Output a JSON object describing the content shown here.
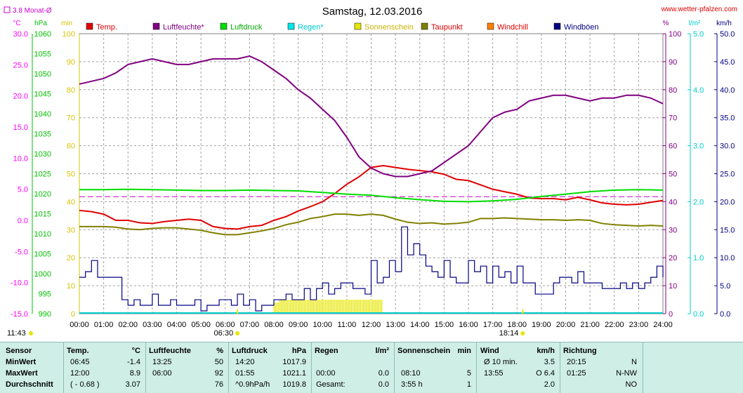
{
  "title": "Samstag, 12.03.2016",
  "source": "www.wetter-pfalzen.com",
  "month_avg_label": "3.8 Monat-Ø",
  "colors": {
    "temp": "#e00000",
    "humidity": "#800080",
    "pressure": "#00dd00",
    "rain": "#00cccc",
    "sunshine": "#e6e600",
    "dewpoint": "#808000",
    "windchill": "#ff8000",
    "gusts": "#000080",
    "temp_axis": "#ff00ff",
    "pressure_axis": "#00c000",
    "sun_axis": "#d4c400",
    "humidity_axis": "#800080",
    "rain_axis": "#00cccc",
    "wind_axis": "#000080",
    "month_avg": "#cc00cc",
    "table_bg": "#cfeee6"
  },
  "legend": [
    {
      "label": "Temp.",
      "color": "#e00000",
      "text_color": "#e00000"
    },
    {
      "label": "Luftfeuchte*",
      "color": "#800080",
      "text_color": "#800080"
    },
    {
      "label": "Luftdruck",
      "color": "#00dd00",
      "text_color": "#00aa00"
    },
    {
      "label": "Regen*",
      "color": "#00e6e6",
      "text_color": "#00cccc"
    },
    {
      "label": "Sonnenschein",
      "color": "#e6e600",
      "text_color": "#c8b400"
    },
    {
      "label": "Taupunkt",
      "color": "#808000",
      "text_color": "#e00000"
    },
    {
      "label": "Windchill",
      "color": "#ff8000",
      "text_color": "#e00000"
    },
    {
      "label": "Windböen",
      "color": "#000080",
      "text_color": "#000080"
    }
  ],
  "axes": {
    "temp": {
      "unit": "°C",
      "ticks": [
        "30.0",
        "25.0",
        "20.0",
        "15.0",
        "10.0",
        "5.0",
        "0.0",
        "-5.0",
        "-10.0",
        "-15.0"
      ],
      "range": [
        -15,
        30
      ]
    },
    "pressure": {
      "unit": "hPa",
      "ticks": [
        "1060",
        "1055",
        "1050",
        "1045",
        "1040",
        "1035",
        "1030",
        "1025",
        "1020",
        "1015",
        "1010",
        "1005",
        "1000",
        "995",
        "990"
      ],
      "range": [
        990,
        1060
      ]
    },
    "sun": {
      "unit": "min",
      "ticks": [
        "100",
        "90",
        "80",
        "70",
        "60",
        "50",
        "40",
        "30",
        "20",
        "10",
        "0"
      ],
      "range": [
        0,
        100
      ]
    },
    "humidity": {
      "unit": "%",
      "ticks": [
        "100",
        "90",
        "80",
        "70",
        "60",
        "50",
        "40",
        "30",
        "20",
        "10",
        "0"
      ],
      "range": [
        0,
        100
      ]
    },
    "rain": {
      "unit": "l/m²",
      "ticks": [
        "5.0",
        "4.0",
        "3.0",
        "2.0",
        "1.0",
        "0.0"
      ],
      "range": [
        0,
        5
      ]
    },
    "wind": {
      "unit": "km/h",
      "ticks": [
        "50.0",
        "45.0",
        "40.0",
        "35.0",
        "30.0",
        "25.0",
        "20.0",
        "15.0",
        "10.0",
        "5.0",
        "0.0"
      ],
      "range": [
        0,
        50
      ]
    }
  },
  "x_ticks": [
    "00:00",
    "01:00",
    "02:00",
    "03:00",
    "04:00",
    "05:00",
    "06:00",
    "07:00",
    "08:00",
    "09:00",
    "10:00",
    "11:00",
    "12:00",
    "13:00",
    "14:00",
    "15:00",
    "16:00",
    "17:00",
    "18:00",
    "19:00",
    "20:00",
    "21:00",
    "22:00",
    "23:00",
    "24:00"
  ],
  "sun_events": {
    "sunrise": "06:30",
    "sunset": "18:14",
    "daylength": "11:43"
  },
  "chart_data": {
    "type": "line",
    "title": "Samstag, 12.03.2016",
    "x_unit": "hour",
    "xlim": [
      0,
      24
    ],
    "month_avg_temp": 3.8,
    "series": [
      {
        "name": "Temp.",
        "axis": "temp",
        "x": [
          0,
          0.5,
          1,
          1.5,
          2,
          2.5,
          3,
          3.5,
          4,
          4.5,
          5,
          5.5,
          6,
          6.5,
          7,
          7.5,
          8,
          8.5,
          9,
          9.5,
          10,
          10.5,
          11,
          11.5,
          12,
          12.5,
          13,
          13.5,
          14,
          14.5,
          15,
          15.5,
          16,
          16.5,
          17,
          17.5,
          18,
          18.5,
          19,
          19.5,
          20,
          20.5,
          21,
          21.5,
          22,
          22.5,
          23,
          23.5,
          24
        ],
        "y": [
          1.6,
          1.4,
          1.0,
          0.0,
          0.0,
          -0.4,
          -0.5,
          -0.2,
          0.0,
          0.2,
          0.0,
          -1.0,
          -1.3,
          -1.4,
          -1.0,
          -0.8,
          0.0,
          0.6,
          1.5,
          2.2,
          3.0,
          4.3,
          5.8,
          7.0,
          8.5,
          8.8,
          8.5,
          8.2,
          8.0,
          7.8,
          7.4,
          6.6,
          6.4,
          5.7,
          5.0,
          4.6,
          4.2,
          3.6,
          3.5,
          3.5,
          3.3,
          3.7,
          3.3,
          2.8,
          2.6,
          2.5,
          2.6,
          2.9,
          3.2
        ]
      },
      {
        "name": "Luftfeuchte*",
        "axis": "humidity",
        "x": [
          0,
          0.5,
          1,
          1.5,
          2,
          2.5,
          3,
          3.5,
          4,
          4.5,
          5,
          5.5,
          6,
          6.5,
          7,
          7.5,
          8,
          8.5,
          9,
          9.5,
          10,
          10.5,
          11,
          11.5,
          12,
          12.5,
          13,
          13.5,
          14,
          14.5,
          15,
          15.5,
          16,
          16.5,
          17,
          17.5,
          18,
          18.5,
          19,
          19.5,
          20,
          20.5,
          21,
          21.5,
          22,
          22.5,
          23,
          23.5,
          24
        ],
        "y": [
          82,
          83,
          84,
          86,
          89,
          90,
          91,
          90,
          89,
          89,
          90,
          91,
          91,
          91,
          92,
          90,
          87,
          84,
          80,
          77,
          73,
          69,
          63,
          56,
          52,
          50,
          49,
          49,
          50,
          51,
          54,
          57,
          60,
          65,
          70,
          72,
          73,
          76,
          77,
          78,
          78,
          77,
          76,
          77,
          77,
          78,
          78,
          77,
          75
        ]
      },
      {
        "name": "Luftdruck",
        "axis": "pressure",
        "x": [
          0,
          1,
          2,
          3,
          4,
          5,
          6,
          7,
          8,
          9,
          10,
          11,
          12,
          13,
          14,
          15,
          16,
          17,
          18,
          19,
          20,
          21,
          22,
          23,
          24
        ],
        "y": [
          1021.0,
          1021.0,
          1021.1,
          1021.0,
          1020.9,
          1020.8,
          1020.8,
          1020.9,
          1020.8,
          1020.7,
          1020.3,
          1019.9,
          1019.6,
          1019.0,
          1018.5,
          1018.1,
          1018.0,
          1018.2,
          1018.6,
          1019.3,
          1019.9,
          1020.5,
          1020.9,
          1021.0,
          1020.9
        ]
      },
      {
        "name": "Taupunkt",
        "axis": "temp",
        "x": [
          0,
          0.5,
          1,
          1.5,
          2,
          2.5,
          3,
          3.5,
          4,
          4.5,
          5,
          5.5,
          6,
          6.5,
          7,
          7.5,
          8,
          8.5,
          9,
          9.5,
          10,
          10.5,
          11,
          11.5,
          12,
          12.5,
          13,
          13.5,
          14,
          14.5,
          15,
          15.5,
          16,
          16.5,
          17,
          17.5,
          18,
          18.5,
          19,
          19.5,
          20,
          20.5,
          21,
          21.5,
          22,
          22.5,
          23,
          23.5,
          24
        ],
        "y": [
          -1.0,
          -1.0,
          -1.0,
          -1.1,
          -1.4,
          -1.5,
          -1.3,
          -1.2,
          -1.2,
          -1.4,
          -1.6,
          -2.0,
          -2.3,
          -2.3,
          -2.0,
          -1.7,
          -1.3,
          -0.7,
          -0.3,
          0.3,
          0.6,
          1.0,
          1.0,
          0.8,
          1.0,
          0.8,
          0.2,
          -0.3,
          -0.5,
          -0.4,
          -0.6,
          -0.5,
          -0.3,
          0.3,
          0.3,
          0.4,
          0.3,
          0.2,
          0.1,
          0.1,
          0.0,
          0.1,
          0.0,
          -0.5,
          -0.7,
          -0.8,
          -0.9,
          -0.8,
          -0.9
        ]
      },
      {
        "name": "Windböen",
        "axis": "wind",
        "x": [
          0,
          0.25,
          0.5,
          0.75,
          1,
          1.25,
          1.5,
          1.75,
          2,
          2.25,
          2.5,
          2.75,
          3,
          3.25,
          3.5,
          3.75,
          4,
          4.25,
          4.5,
          4.75,
          5,
          5.25,
          5.5,
          5.75,
          6,
          6.25,
          6.5,
          6.75,
          7,
          7.25,
          7.5,
          7.75,
          8,
          8.25,
          8.5,
          8.75,
          9,
          9.25,
          9.5,
          9.75,
          10,
          10.25,
          10.5,
          10.75,
          11,
          11.25,
          11.5,
          11.75,
          12,
          12.25,
          12.5,
          12.75,
          13,
          13.25,
          13.5,
          13.75,
          14,
          14.25,
          14.5,
          14.75,
          15,
          15.25,
          15.5,
          15.75,
          16,
          16.25,
          16.5,
          16.75,
          17,
          17.25,
          17.5,
          17.75,
          18,
          18.25,
          18.5,
          18.75,
          19,
          19.25,
          19.5,
          19.75,
          20,
          20.25,
          20.5,
          20.75,
          21,
          21.25,
          21.5,
          21.75,
          22,
          22.25,
          22.5,
          22.75,
          23,
          23.25,
          23.5,
          23.75,
          24
        ],
        "y": [
          6.5,
          7.5,
          9.5,
          6.5,
          6.5,
          6.5,
          6.5,
          2.5,
          1.5,
          2.5,
          1.5,
          1.5,
          3.5,
          1.5,
          1.5,
          2.5,
          1.5,
          1.5,
          1.5,
          2.5,
          0.5,
          1.5,
          1.5,
          2.5,
          2.5,
          1.5,
          3.5,
          1.5,
          2.5,
          0.5,
          1.5,
          1.5,
          2.5,
          2.5,
          3.5,
          2.5,
          2.5,
          4.5,
          2.5,
          4.5,
          5.5,
          3.5,
          4.5,
          5.5,
          5.5,
          4.5,
          4.5,
          3.5,
          9.5,
          5.5,
          6.5,
          9.5,
          7.5,
          15.5,
          10.5,
          12.5,
          10.5,
          8.5,
          7.5,
          6.5,
          9.5,
          6.5,
          5.5,
          5.5,
          9.5,
          7.5,
          8.5,
          5.5,
          8.5,
          6.5,
          7.5,
          5.5,
          8.5,
          5.5,
          5.5,
          3.5,
          3.5,
          3.5,
          5.5,
          6.5,
          6.5,
          5.5,
          7.5,
          5.5,
          5.5,
          5.5,
          4.5,
          4.5,
          4.5,
          5.5,
          4.5,
          5.5,
          4.5,
          5.5,
          6.5,
          8.5,
          6.5
        ]
      },
      {
        "name": "Sonnenschein",
        "axis": "sun",
        "type": "bar",
        "x": [
          8.0,
          8.25,
          8.5,
          8.75,
          9.0,
          9.25,
          9.5,
          9.75,
          10.0,
          10.25,
          10.5,
          10.75,
          11.0,
          11.25,
          11.5,
          11.75,
          12.0,
          12.25
        ],
        "y": [
          4,
          5,
          5,
          5,
          5,
          5,
          5,
          5,
          5,
          5,
          5,
          5,
          5,
          5,
          5,
          5,
          5,
          5
        ]
      }
    ]
  },
  "table": {
    "headers": {
      "sensor": "Sensor",
      "temp": "Temp.",
      "temp_unit": "°C",
      "hum": "Luftfeuchte",
      "hum_unit": "%",
      "press": "Luftdruck",
      "press_unit": "hPa",
      "rain": "Regen",
      "rain_unit": "l/m²",
      "sun": "Sonnenschein",
      "sun_unit": "min",
      "wind": "Wind",
      "wind_unit": "km/h",
      "dir": "Richtung"
    },
    "rows": [
      {
        "label": "MinWert",
        "temp_time": "06:45",
        "temp_val": "-1.4",
        "hum_time": "13:25",
        "hum_val": "50",
        "press_time": "14:20",
        "press_val": "1017.9",
        "rain_time": "",
        "rain_val": "",
        "sun_time": "",
        "sun_val": "",
        "wind_time": "Ø 10 min.",
        "wind_val": "3.5",
        "dir_time": "20:15",
        "dir_val": "N"
      },
      {
        "label": "MaxWert",
        "temp_time": "12:00",
        "temp_val": "8.9",
        "hum_time": "06:00",
        "hum_val": "92",
        "press_time": "01:55",
        "press_val": "1021.1",
        "rain_time": "00:00",
        "rain_val": "0.0",
        "sun_time": "08:10",
        "sun_val": "5",
        "wind_time": "13:55",
        "wind_val": "O 6.4",
        "dir_time": "01:25",
        "dir_val": "N-NW"
      },
      {
        "label": "Durchschnitt",
        "temp_time": "( - 0.68 )",
        "temp_val": "3.07",
        "hum_time": "",
        "hum_val": "76",
        "press_time": "^0.9hPa/h",
        "press_val": "1019.8",
        "rain_time": "Gesamt:",
        "rain_val": "0.0",
        "sun_time": "3:55 h",
        "sun_val": "1",
        "wind_time": "",
        "wind_val": "2.0",
        "dir_time": "",
        "dir_val": "NO"
      }
    ]
  }
}
